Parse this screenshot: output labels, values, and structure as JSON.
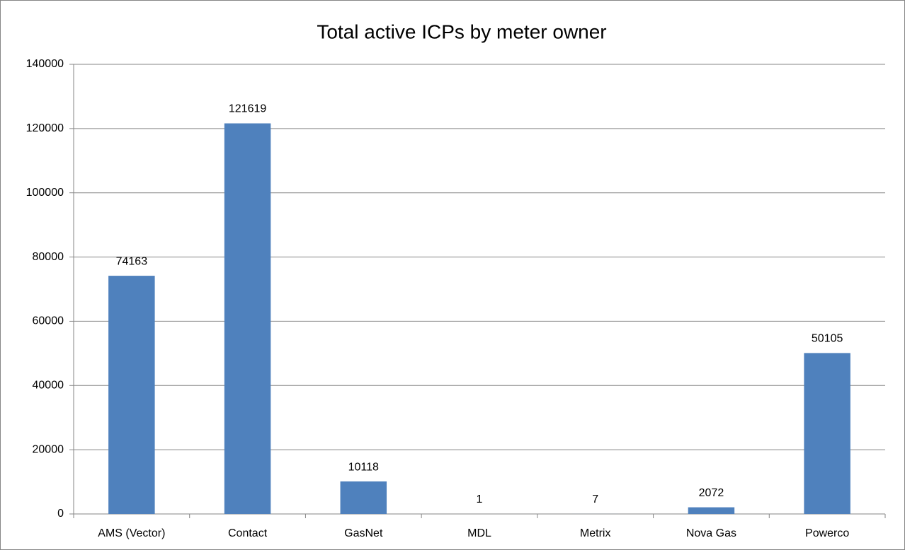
{
  "chart_data": {
    "type": "bar",
    "title": "Total active ICPs by meter owner",
    "categories": [
      "AMS (Vector)",
      "Contact",
      "GasNet",
      "MDL",
      "Metrix",
      "Nova Gas",
      "Powerco"
    ],
    "values": [
      74163,
      121619,
      10118,
      1,
      7,
      2072,
      50105
    ],
    "color": "#4f81bd",
    "ylim": [
      0,
      140000
    ],
    "yticks": [
      0,
      20000,
      40000,
      60000,
      80000,
      100000,
      120000,
      140000
    ],
    "grid": true
  }
}
